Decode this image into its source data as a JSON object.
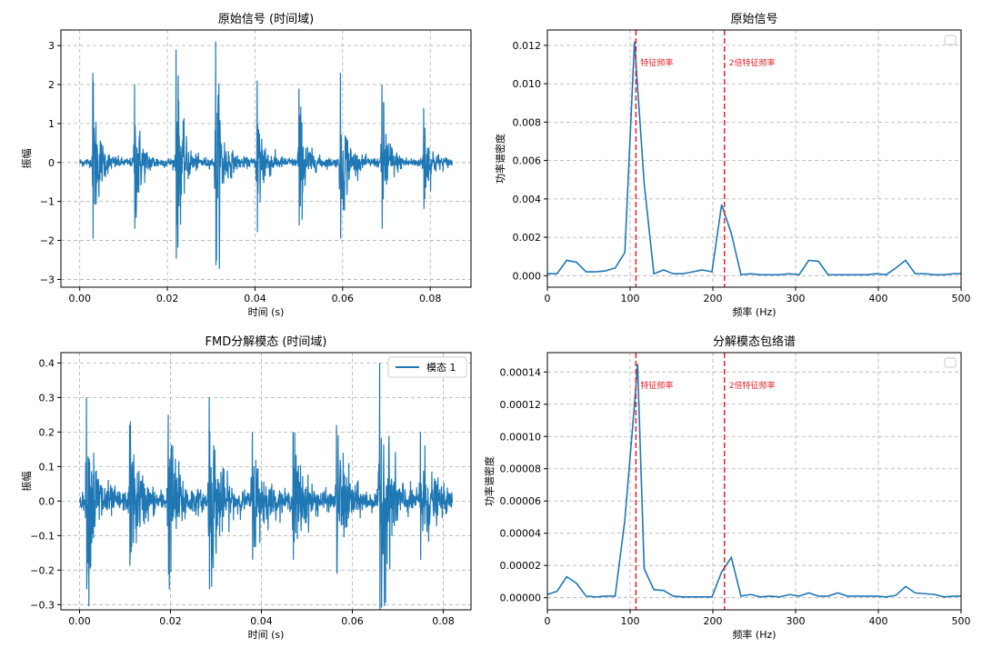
{
  "chart_data": [
    {
      "type": "line",
      "title": "原始信号 (时间域)",
      "xlabel": "时间 (s)",
      "ylabel": "振幅",
      "xlim": [
        -0.0043,
        0.0893
      ],
      "ylim": [
        -3.2,
        3.4
      ],
      "xticks": [
        0.0,
        0.02,
        0.04,
        0.06,
        0.08
      ],
      "xtick_labels": [
        "0.00",
        "0.02",
        "0.04",
        "0.06",
        "0.08"
      ],
      "yticks": [
        -3,
        -2,
        -1,
        0,
        1,
        2,
        3
      ],
      "ytick_labels": [
        "−3",
        "−2",
        "−1",
        "0",
        "1",
        "2",
        "3"
      ],
      "grid": true,
      "series_color": "#1f77b4",
      "signal": {
        "x_end": 0.085,
        "bursts": [
          {
            "t": 0.003,
            "amp": 2.3
          },
          {
            "t": 0.0125,
            "amp": 2.0
          },
          {
            "t": 0.022,
            "amp": 2.9
          },
          {
            "t": 0.031,
            "amp": 3.1
          },
          {
            "t": 0.0405,
            "amp": 2.1
          },
          {
            "t": 0.05,
            "amp": 1.9
          },
          {
            "t": 0.0595,
            "amp": 2.3
          },
          {
            "t": 0.069,
            "amp": 2.0
          },
          {
            "t": 0.0785,
            "amp": 1.4
          }
        ],
        "noise": 0.25,
        "decay": 0.0014
      }
    },
    {
      "type": "line",
      "title": "原始信号",
      "xlabel": "频率 (Hz)",
      "ylabel": "功率谱密度",
      "xlim": [
        0,
        500
      ],
      "ylim": [
        -0.0006,
        0.0128
      ],
      "xticks": [
        0,
        100,
        200,
        300,
        400,
        500
      ],
      "xtick_labels": [
        "0",
        "100",
        "200",
        "300",
        "400",
        "500"
      ],
      "yticks": [
        0.0,
        0.002,
        0.004,
        0.006,
        0.008,
        0.01,
        0.012
      ],
      "ytick_labels": [
        "0.000",
        "0.002",
        "0.004",
        "0.006",
        "0.008",
        "0.010",
        "0.012"
      ],
      "grid": true,
      "series_color": "#1f77b4",
      "x": [
        0,
        11.7,
        23.4,
        35.1,
        46.8,
        58.5,
        70.2,
        81.9,
        93.6,
        105.3,
        117,
        128.7,
        140.4,
        152.1,
        163.8,
        175.5,
        187.2,
        198.9,
        210.6,
        222.3,
        234,
        245.7,
        257.4,
        269.1,
        280.8,
        292.5,
        304.2,
        315.9,
        327.6,
        339.3,
        351,
        362.7,
        374.4,
        386.1,
        397.8,
        409.5,
        421.2,
        432.9,
        444.6,
        456.3,
        468,
        479.7,
        491.4,
        500
      ],
      "y": [
        0.0001,
        0.0001,
        0.0008,
        0.0007,
        0.0002,
        0.0002,
        0.00025,
        0.0004,
        0.0012,
        0.0122,
        0.0048,
        0.0001,
        0.0003,
        0.0001,
        0.0001,
        0.0002,
        0.0003,
        0.0002,
        0.0037,
        0.0022,
        5e-05,
        0.0001,
        5e-05,
        5e-05,
        5e-05,
        0.0001,
        5e-05,
        0.0008,
        0.00075,
        5e-05,
        5e-05,
        5e-05,
        5e-05,
        5e-05,
        0.0001,
        5e-05,
        0.0004,
        0.0008,
        0.0001,
        0.0001,
        5e-05,
        5e-05,
        0.0001,
        0.0001
      ],
      "vlines": [
        {
          "x": 107,
          "label": "特征频率",
          "color": "#e8232a"
        },
        {
          "x": 214,
          "label": "2倍特征频率",
          "color": "#e8232a"
        }
      ],
      "legend": {
        "placement": "top-right",
        "entries": []
      }
    },
    {
      "type": "line",
      "title": "FMD分解模态 (时间域)",
      "xlabel": "时间 (s)",
      "ylabel": "振幅",
      "xlim": [
        -0.0041,
        0.0861
      ],
      "ylim": [
        -0.315,
        0.43
      ],
      "xticks": [
        0.0,
        0.02,
        0.04,
        0.06,
        0.08
      ],
      "xtick_labels": [
        "0.00",
        "0.02",
        "0.04",
        "0.06",
        "0.08"
      ],
      "yticks": [
        -0.3,
        -0.2,
        -0.1,
        0.0,
        0.1,
        0.2,
        0.3,
        0.4
      ],
      "ytick_labels": [
        "−0.3",
        "−0.2",
        "−0.1",
        "0.0",
        "0.1",
        "0.2",
        "0.3",
        "0.4"
      ],
      "grid": true,
      "series_color": "#1f77b4",
      "signal": {
        "x_end": 0.082,
        "bursts": [
          {
            "t": 0.0015,
            "amp": 0.3
          },
          {
            "t": 0.011,
            "amp": 0.22
          },
          {
            "t": 0.0195,
            "amp": 0.25
          },
          {
            "t": 0.0285,
            "amp": 0.3
          },
          {
            "t": 0.038,
            "amp": 0.2
          },
          {
            "t": 0.047,
            "amp": 0.2
          },
          {
            "t": 0.0565,
            "amp": 0.22
          },
          {
            "t": 0.066,
            "amp": 0.4
          },
          {
            "t": 0.075,
            "amp": 0.2
          }
        ],
        "noise": 0.05,
        "decay": 0.0022
      },
      "legend": {
        "placement": "top-right",
        "entries": [
          {
            "name": "模态 1",
            "color": "#1f77b4"
          }
        ]
      }
    },
    {
      "type": "line",
      "title": "分解模态包络谱",
      "xlabel": "频率 (Hz)",
      "ylabel": "功率谱密度",
      "xlim": [
        0,
        500
      ],
      "ylim": [
        -7.5e-06,
        0.000152
      ],
      "xticks": [
        0,
        100,
        200,
        300,
        400,
        500
      ],
      "xtick_labels": [
        "0",
        "100",
        "200",
        "300",
        "400",
        "500"
      ],
      "yticks": [
        0.0,
        2e-05,
        4e-05,
        6e-05,
        8e-05,
        0.0001,
        0.00012,
        0.00014
      ],
      "ytick_labels": [
        "0.00000",
        "0.00002",
        "0.00004",
        "0.00006",
        "0.00008",
        "0.00010",
        "0.00012",
        "0.00014"
      ],
      "grid": true,
      "series_color": "#1f77b4",
      "x": [
        0,
        11.7,
        23.4,
        35.1,
        46.8,
        58.5,
        70.2,
        81.9,
        93.6,
        105.3,
        109,
        117,
        128.7,
        140.4,
        152.1,
        163.8,
        175.5,
        187.2,
        198.9,
        210.6,
        222.3,
        234,
        245.7,
        257.4,
        269.1,
        280.8,
        292.5,
        304.2,
        315.9,
        327.6,
        339.3,
        351,
        362.7,
        374.4,
        386.1,
        397.8,
        409.5,
        421.2,
        432.9,
        444.6,
        456.3,
        468,
        479.7,
        491.4,
        500
      ],
      "y": [
        2e-06,
        4e-06,
        1.3e-05,
        9e-06,
        1e-06,
        5e-07,
        1e-06,
        1e-06,
        4.8e-05,
        0.00012,
        0.000145,
        1.8e-05,
        5e-06,
        4.5e-06,
        1e-06,
        5e-07,
        5e-07,
        5e-07,
        5e-07,
        1.6e-05,
        2.5e-05,
        1e-06,
        2e-06,
        5e-07,
        1e-06,
        5e-07,
        2e-06,
        1e-06,
        3e-06,
        1e-06,
        1e-06,
        3e-06,
        1e-06,
        1e-06,
        1e-06,
        1e-06,
        5e-07,
        1.5e-06,
        7e-06,
        3e-06,
        2.5e-06,
        2e-06,
        5e-07,
        1e-06,
        1e-06
      ],
      "vlines": [
        {
          "x": 107,
          "label": "特征频率",
          "color": "#e8232a"
        },
        {
          "x": 214,
          "label": "2倍特征频率",
          "color": "#e8232a"
        }
      ],
      "legend": {
        "placement": "top-right",
        "entries": []
      }
    }
  ]
}
